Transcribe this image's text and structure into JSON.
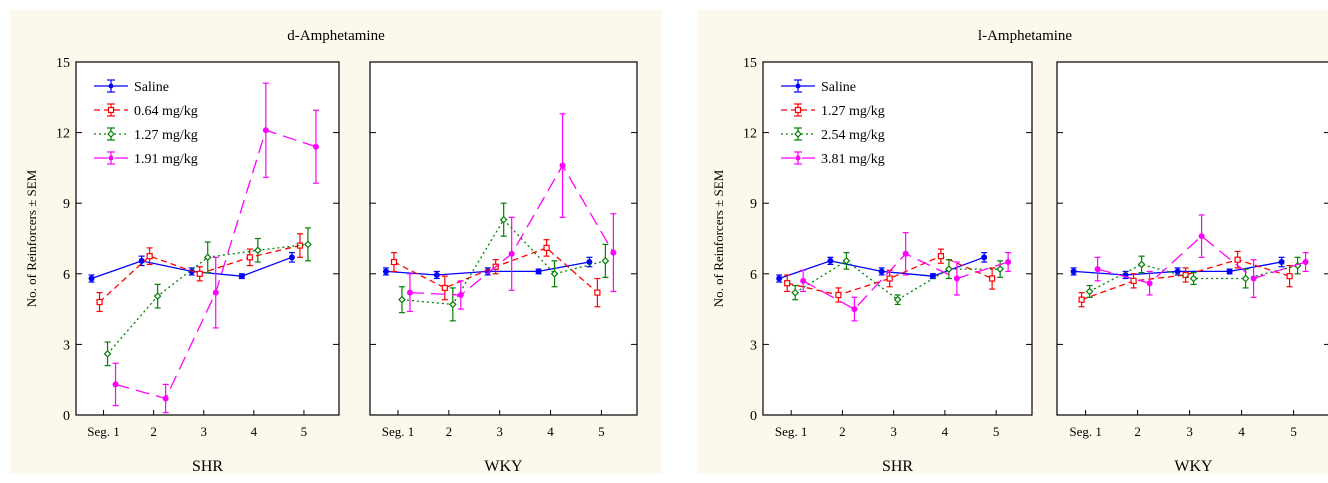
{
  "chart_data": [
    {
      "type": "line",
      "title": "d-Amphetamine",
      "ylabel": "No. of Reinforcers ± SEM",
      "ylim": [
        0,
        15
      ],
      "yticks": [
        "0",
        "3",
        "6",
        "9",
        "12",
        "15"
      ],
      "categories": [
        "Seg. 1",
        "2",
        "3",
        "4",
        "5"
      ],
      "legend_position": "top-left",
      "series_styles": [
        {
          "color": "#0000ff",
          "dash": "solid",
          "marker": "filled-circle"
        },
        {
          "color": "#ff0000",
          "dash": "dashed",
          "marker": "open-square"
        },
        {
          "color": "#008000",
          "dash": "dotted",
          "marker": "open-diamond"
        },
        {
          "color": "#ff00ff",
          "dash": "long-dash",
          "marker": "filled-circle"
        }
      ],
      "legend": [
        "Saline",
        "0.64 mg/kg",
        "1.27 mg/kg",
        "1.91 mg/kg"
      ],
      "panels": [
        {
          "label": "SHR",
          "series": [
            {
              "name": "Saline",
              "values": [
                5.8,
                6.55,
                6.1,
                5.9,
                6.7
              ],
              "sem": [
                0.15,
                0.2,
                0.15,
                0.1,
                0.2
              ]
            },
            {
              "name": "0.64 mg/kg",
              "values": [
                4.8,
                6.75,
                6.0,
                6.7,
                7.2
              ],
              "sem": [
                0.4,
                0.35,
                0.3,
                0.35,
                0.5
              ]
            },
            {
              "name": "1.27 mg/kg",
              "values": [
                2.6,
                5.05,
                6.7,
                7.0,
                7.25
              ],
              "sem": [
                0.5,
                0.5,
                0.65,
                0.5,
                0.7
              ]
            },
            {
              "name": "1.91 mg/kg",
              "values": [
                1.3,
                0.7,
                5.2,
                12.1,
                11.4
              ],
              "sem": [
                0.9,
                0.6,
                1.5,
                2.0,
                1.55
              ]
            }
          ]
        },
        {
          "label": "WKY",
          "series": [
            {
              "name": "Saline",
              "values": [
                6.1,
                5.95,
                6.1,
                6.1,
                6.5
              ],
              "sem": [
                0.15,
                0.15,
                0.15,
                0.1,
                0.2
              ]
            },
            {
              "name": "0.64 mg/kg",
              "values": [
                6.5,
                5.4,
                6.3,
                7.1,
                5.2
              ],
              "sem": [
                0.4,
                0.5,
                0.3,
                0.35,
                0.6
              ]
            },
            {
              "name": "1.27 mg/kg",
              "values": [
                4.9,
                4.7,
                8.3,
                6.0,
                6.55
              ],
              "sem": [
                0.55,
                0.7,
                0.7,
                0.55,
                0.7
              ]
            },
            {
              "name": "1.91 mg/kg",
              "values": [
                5.2,
                5.1,
                6.85,
                10.6,
                6.9
              ],
              "sem": [
                0.8,
                0.6,
                1.55,
                2.2,
                1.65
              ]
            }
          ]
        }
      ]
    },
    {
      "type": "line",
      "title": "l-Amphetamine",
      "ylabel": "No. of Reinforcers ± SEM",
      "ylim": [
        0,
        15
      ],
      "yticks": [
        "0",
        "3",
        "6",
        "9",
        "12",
        "15"
      ],
      "categories": [
        "Seg. 1",
        "2",
        "3",
        "4",
        "5"
      ],
      "legend_position": "top-left",
      "series_styles": [
        {
          "color": "#0000ff",
          "dash": "solid",
          "marker": "filled-circle"
        },
        {
          "color": "#ff0000",
          "dash": "dashed",
          "marker": "open-square"
        },
        {
          "color": "#008000",
          "dash": "dotted",
          "marker": "open-diamond"
        },
        {
          "color": "#ff00ff",
          "dash": "long-dash",
          "marker": "filled-circle"
        }
      ],
      "legend": [
        "Saline",
        "1.27 mg/kg",
        "2.54 mg/kg",
        "3.81 mg/kg"
      ],
      "panels": [
        {
          "label": "SHR",
          "series": [
            {
              "name": "Saline",
              "values": [
                5.8,
                6.55,
                6.1,
                5.9,
                6.7
              ],
              "sem": [
                0.15,
                0.15,
                0.15,
                0.1,
                0.2
              ]
            },
            {
              "name": "1.27 mg/kg",
              "values": [
                5.6,
                5.1,
                5.8,
                6.75,
                5.8
              ],
              "sem": [
                0.35,
                0.3,
                0.35,
                0.3,
                0.45
              ]
            },
            {
              "name": "2.54 mg/kg",
              "values": [
                5.2,
                6.55,
                4.9,
                6.2,
                6.2
              ],
              "sem": [
                0.3,
                0.35,
                0.2,
                0.4,
                0.35
              ]
            },
            {
              "name": "3.81 mg/kg",
              "values": [
                5.7,
                4.5,
                6.85,
                5.8,
                6.5
              ],
              "sem": [
                0.45,
                0.5,
                0.9,
                0.7,
                0.4
              ]
            }
          ]
        },
        {
          "label": "WKY",
          "series": [
            {
              "name": "Saline",
              "values": [
                6.1,
                5.95,
                6.1,
                6.1,
                6.5
              ],
              "sem": [
                0.15,
                0.15,
                0.15,
                0.1,
                0.2
              ]
            },
            {
              "name": "1.27 mg/kg",
              "values": [
                4.9,
                5.7,
                5.95,
                6.6,
                5.9
              ],
              "sem": [
                0.3,
                0.3,
                0.3,
                0.35,
                0.45
              ]
            },
            {
              "name": "2.54 mg/kg",
              "values": [
                5.25,
                6.4,
                5.8,
                5.8,
                6.35
              ],
              "sem": [
                0.25,
                0.35,
                0.25,
                0.4,
                0.35
              ]
            },
            {
              "name": "3.81 mg/kg",
              "values": [
                6.2,
                5.6,
                7.6,
                5.8,
                6.5
              ],
              "sem": [
                0.5,
                0.5,
                0.9,
                0.8,
                0.4
              ]
            }
          ]
        }
      ]
    }
  ]
}
